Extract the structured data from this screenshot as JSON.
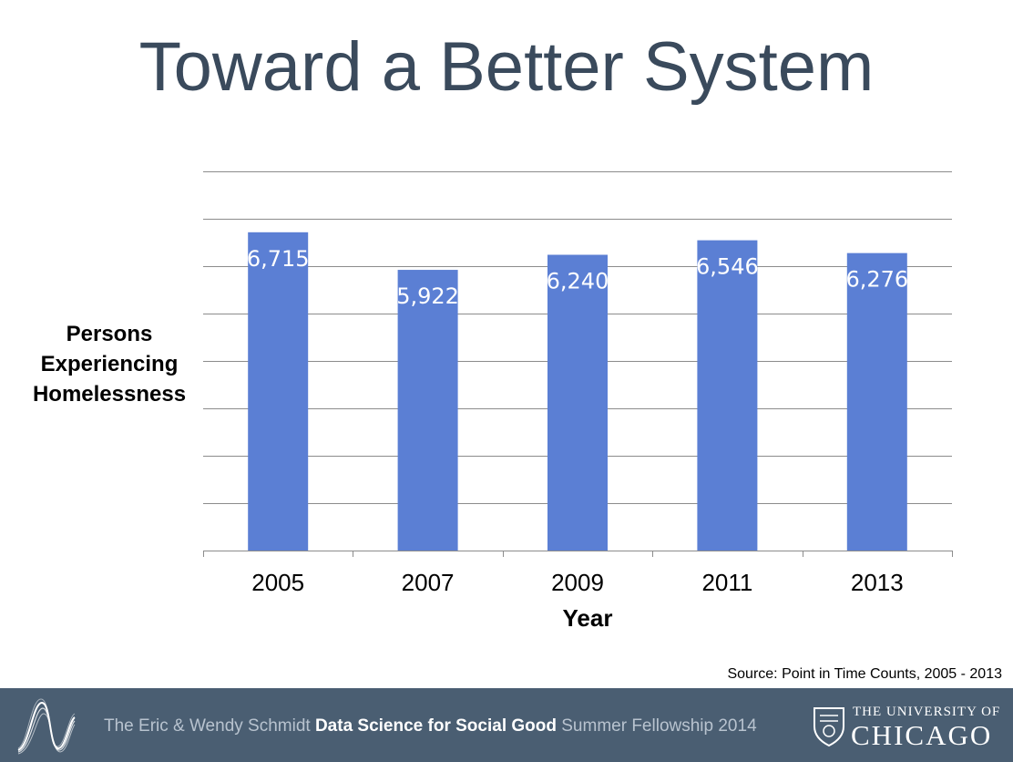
{
  "slide": {
    "title": "Toward a Better System"
  },
  "chart_data": {
    "type": "bar",
    "categories": [
      "2005",
      "2007",
      "2009",
      "2011",
      "2013"
    ],
    "values": [
      6715,
      5922,
      6240,
      6546,
      6276
    ],
    "data_labels": [
      "6,715",
      "5,922",
      "6,240",
      "6,546",
      "6,276"
    ],
    "xlabel": "Year",
    "ylabel": "Persons Experiencing Homelessness",
    "ylabel_lines": [
      "Persons",
      "Experiencing",
      "Homelessness"
    ],
    "ylim": [
      0,
      8000
    ],
    "y_gridline_step": 1000,
    "y_tick_labels_shown": false,
    "grid": true,
    "legend": "none",
    "bar_color": "#5b7fd4",
    "data_label_color": "#ffffff"
  },
  "source": "Source: Point in Time Counts, 2005 - 2013",
  "footer": {
    "text_prefix": "The Eric & Wendy Schmidt ",
    "text_bold": "Data Science for Social Good",
    "text_suffix": " Summer Fellowship 2014",
    "background": "#4a5e72",
    "logo_top": "THE UNIVERSITY OF",
    "logo_bottom": "CHICAGO",
    "left_logo_icon": "wave-logo-icon",
    "right_logo_icon": "university-crest-icon"
  }
}
